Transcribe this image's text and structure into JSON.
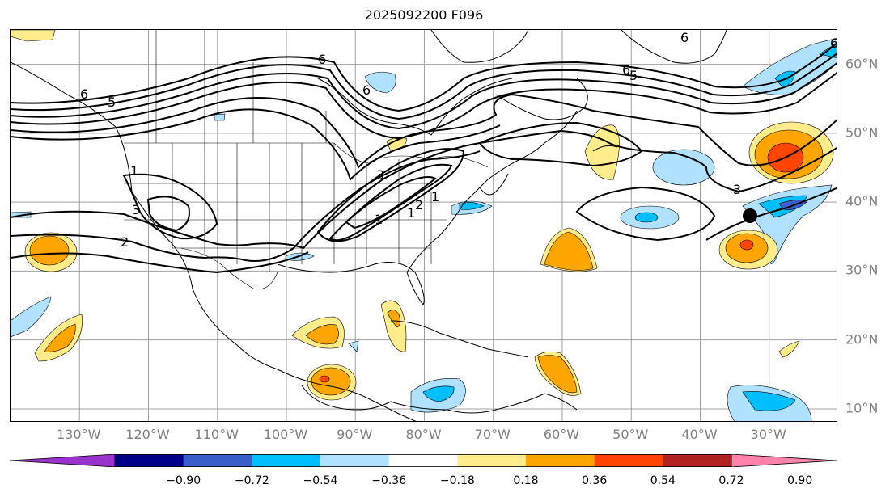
{
  "title": "2025092200 F096",
  "map": {
    "lon_range": [
      -140,
      -20
    ],
    "lat_range": [
      8,
      65
    ],
    "lon_labels": [
      "130°W",
      "120°W",
      "110°W",
      "100°W",
      "90°W",
      "80°W",
      "70°W",
      "60°W",
      "50°W",
      "40°W",
      "30°W"
    ],
    "lat_labels": [
      "60°N",
      "50°N",
      "40°N",
      "30°N",
      "20°N",
      "10°N"
    ],
    "grid_color": "#a0a0a0",
    "contour_labels": [
      "6",
      "5",
      "6",
      "6",
      "6",
      "6",
      "5",
      "6",
      "1",
      "3",
      "2",
      "1",
      "1",
      "3",
      "3",
      "1",
      "2"
    ],
    "marker": "black dot near 38°N 33°W"
  },
  "colorbar": {
    "ticks": [
      "−0.90",
      "−0.72",
      "−0.54",
      "−0.36",
      "−0.18",
      "0.18",
      "0.36",
      "0.54",
      "0.72",
      "0.90"
    ],
    "colors": [
      "#9932cc",
      "#00008b",
      "#3a5fcd",
      "#00bfff",
      "#b0e2ff",
      "#ffffff",
      "#ffec8b",
      "#ffa500",
      "#ff4500",
      "#b22222",
      "#ff82ab"
    ]
  }
}
